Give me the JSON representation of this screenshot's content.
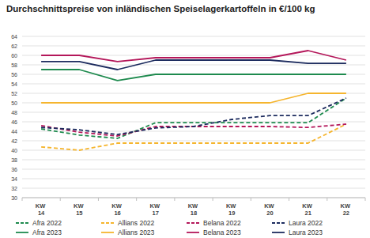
{
  "chart_data": {
    "type": "line",
    "title": "Durchschnittspreise von inländischen Speiselagerkartoffeln in €/100 kg",
    "categories": [
      "KW 14",
      "KW 15",
      "KW 16",
      "KW 17",
      "KW 18",
      "KW 19",
      "KW 20",
      "KW 21",
      "KW 22"
    ],
    "series": [
      {
        "name": "Afra 2022",
        "color": "#1e8a4e",
        "line_style": "dashed",
        "values": [
          44.5,
          43.2,
          42.5,
          45.8,
          45.8,
          45.8,
          45.8,
          45.8,
          51.0
        ]
      },
      {
        "name": "Allians 2022",
        "color": "#f5b52e",
        "line_style": "dashed",
        "values": [
          40.7,
          40.0,
          41.5,
          41.5,
          41.5,
          41.5,
          41.5,
          41.5,
          45.5
        ]
      },
      {
        "name": "Belana 2022",
        "color": "#b4175a",
        "line_style": "dashed",
        "values": [
          45.2,
          43.8,
          43.0,
          45.0,
          45.0,
          45.0,
          45.0,
          44.8,
          45.5
        ]
      },
      {
        "name": "Laura 2022",
        "color": "#1c2b5e",
        "line_style": "dashed",
        "values": [
          44.8,
          44.3,
          43.3,
          44.7,
          45.0,
          46.5,
          47.3,
          47.3,
          51.0
        ]
      },
      {
        "name": "Afra 2023",
        "color": "#1e8a4e",
        "line_style": "solid",
        "values": [
          57.0,
          57.0,
          54.7,
          56.0,
          56.0,
          56.0,
          56.0,
          56.0,
          56.0
        ]
      },
      {
        "name": "Allians 2023",
        "color": "#f5b52e",
        "line_style": "solid",
        "values": [
          50.0,
          50.0,
          50.0,
          50.0,
          50.0,
          50.0,
          50.0,
          52.0,
          52.0
        ]
      },
      {
        "name": "Belana 2023",
        "color": "#b4175a",
        "line_style": "solid",
        "values": [
          60.0,
          60.0,
          58.7,
          59.5,
          59.5,
          59.5,
          59.5,
          61.0,
          59.0
        ]
      },
      {
        "name": "Laura 2023",
        "color": "#1c2b5e",
        "line_style": "solid",
        "values": [
          58.7,
          58.7,
          57.0,
          59.0,
          59.0,
          59.0,
          59.0,
          58.3,
          58.3
        ]
      }
    ],
    "ylim": [
      30,
      64
    ],
    "yticks": [
      30,
      32,
      34,
      36,
      38,
      40,
      42,
      44,
      46,
      48,
      50,
      52,
      54,
      56,
      58,
      60,
      62,
      64
    ],
    "grid": true,
    "legend": "bottom"
  }
}
